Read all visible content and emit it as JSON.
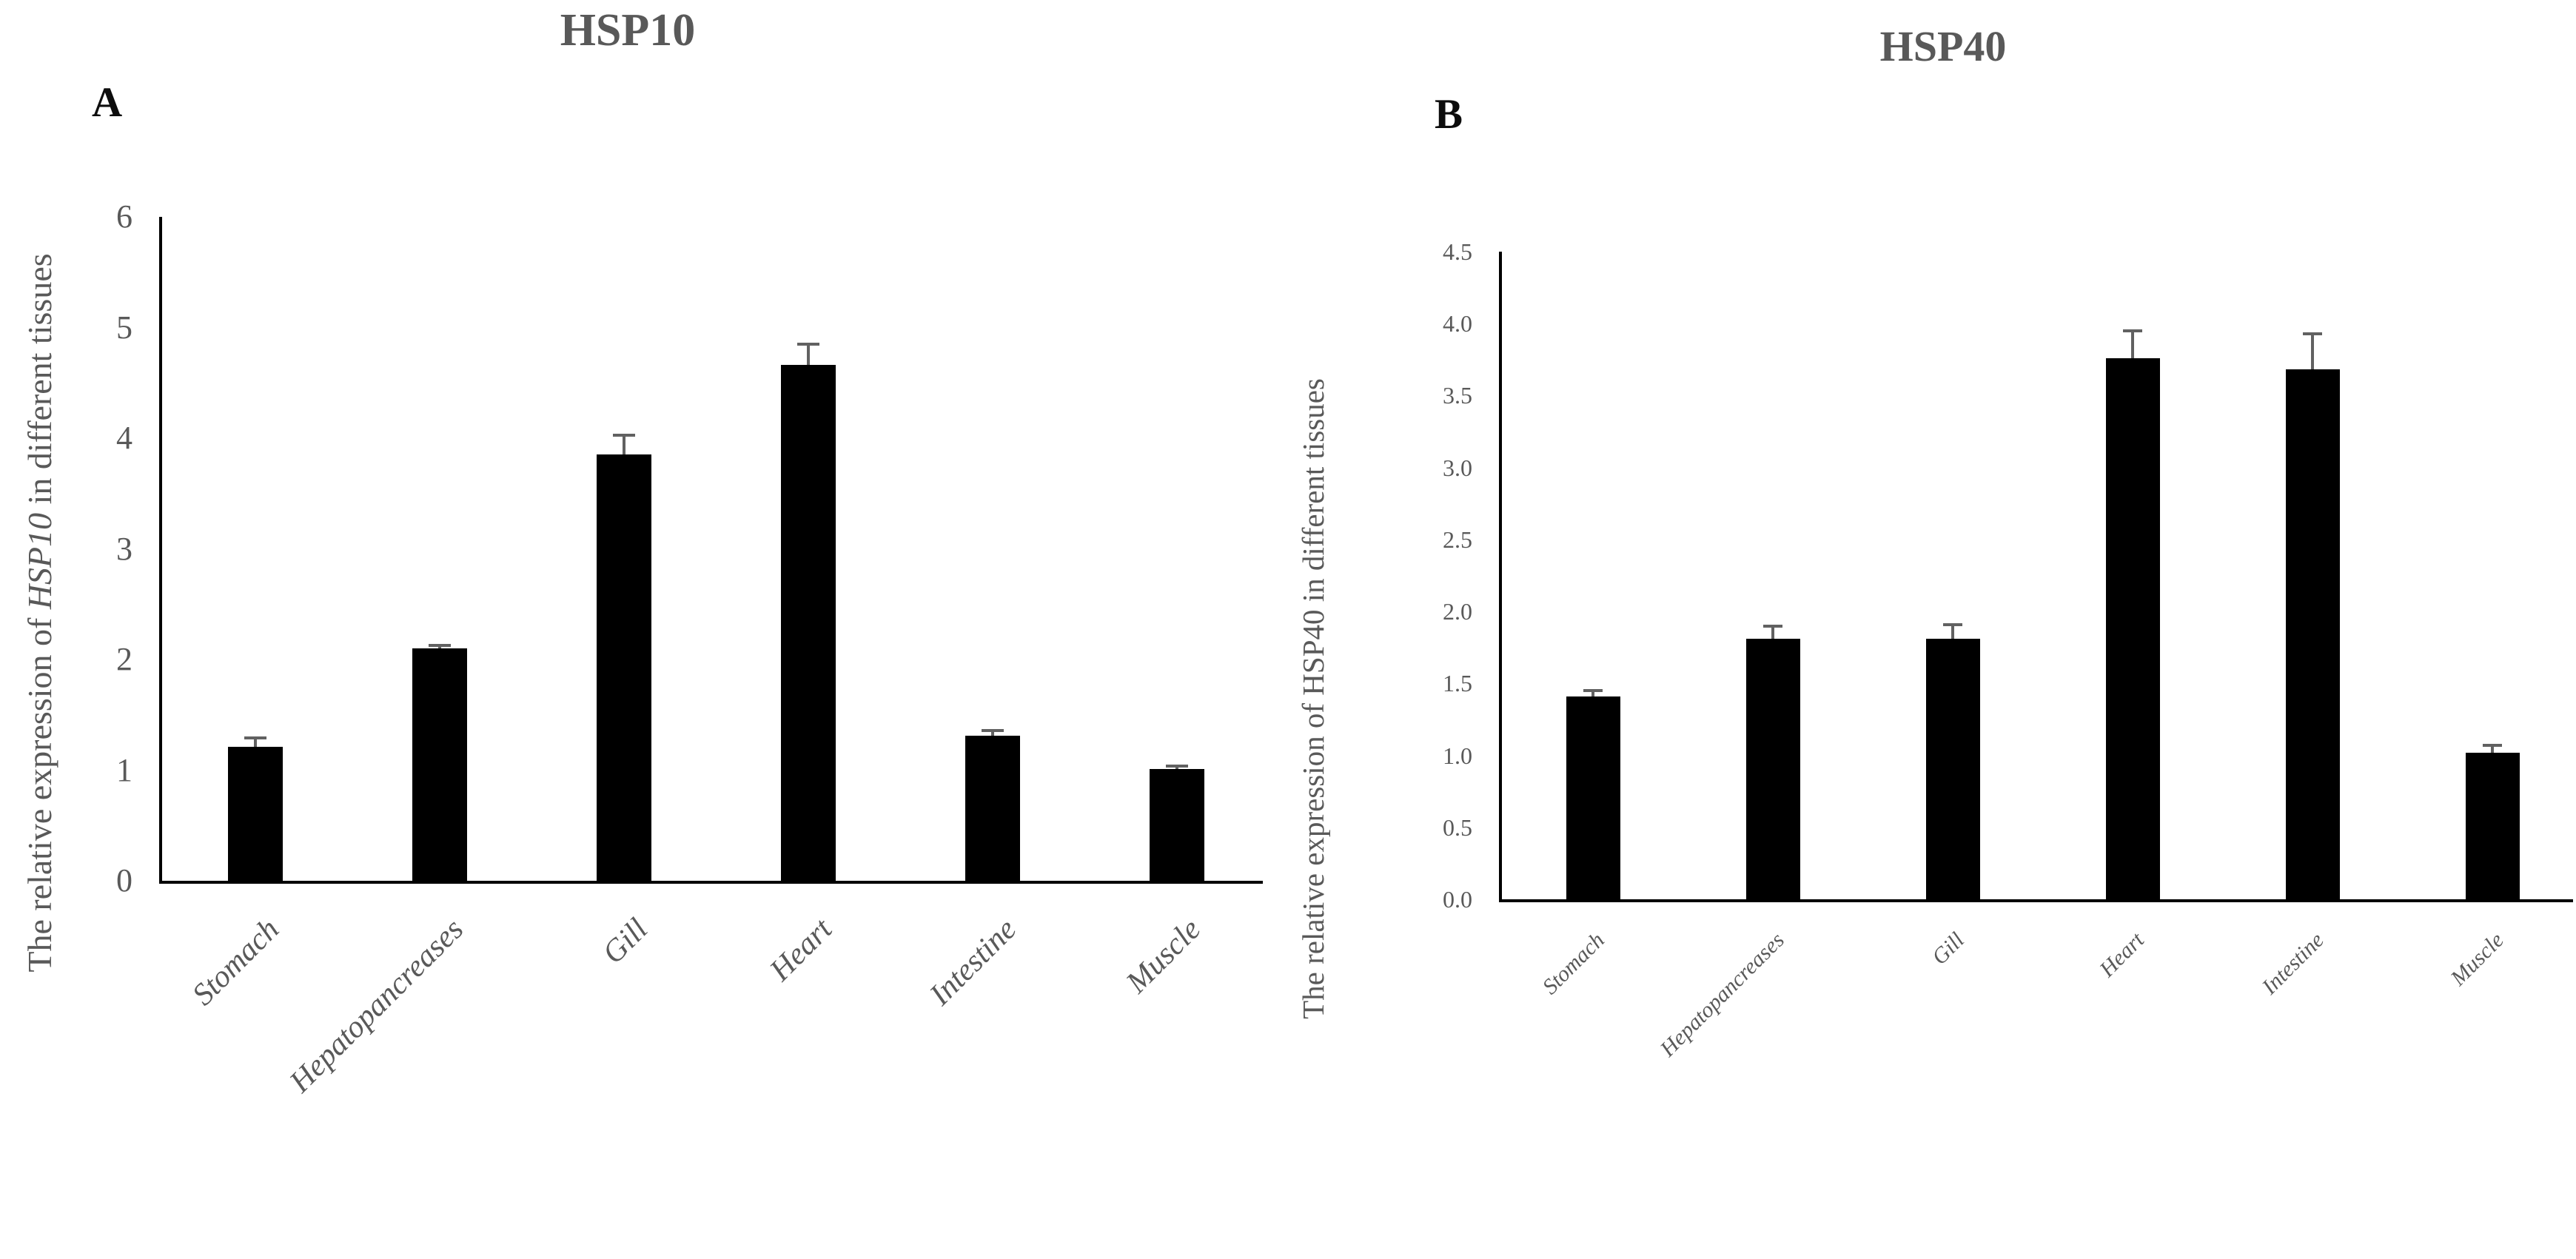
{
  "figure": {
    "background": "#ffffff"
  },
  "colors": {
    "bar": "#000000",
    "axis": "#000000",
    "text_gray": "#595959",
    "error_bar": "#616161"
  },
  "chart_data": [
    {
      "type": "bar",
      "panel_label": "A",
      "title": "HSP10",
      "ylabel": {
        "prefix": "The relative expression of ",
        "gene": "HSP10",
        "gene_italic": true,
        "suffix": " in different tissues"
      },
      "xlabel": "",
      "categories": [
        "Stomach",
        "Hepatopancreases",
        "Gill",
        "Heart",
        "Intestine",
        "Muscle"
      ],
      "values": [
        1.21,
        2.1,
        3.85,
        4.66,
        1.31,
        1.01
      ],
      "errors": [
        0.08,
        0.03,
        0.18,
        0.19,
        0.05,
        0.03
      ],
      "ylim": [
        0,
        6
      ],
      "ytick_step": 1,
      "ytick_decimals": 0,
      "grid": false,
      "legend": null,
      "bar_color": "#000000"
    },
    {
      "type": "bar",
      "panel_label": "B",
      "title": "HSP40",
      "ylabel": {
        "prefix": "The relative expression of ",
        "gene": "HSP40",
        "gene_italic": false,
        "suffix": " in different tissues"
      },
      "xlabel": "",
      "categories": [
        "Stomach",
        "Hepatopancreases",
        "Gill",
        "Heart",
        "Intestine",
        "Muscle"
      ],
      "values": [
        1.41,
        1.81,
        1.81,
        3.76,
        3.68,
        1.02
      ],
      "errors": [
        0.04,
        0.09,
        0.1,
        0.19,
        0.25,
        0.05
      ],
      "ylim": [
        0,
        4.5
      ],
      "ytick_step": 0.5,
      "ytick_decimals": 1,
      "grid": false,
      "legend": null,
      "bar_color": "#000000"
    }
  ]
}
